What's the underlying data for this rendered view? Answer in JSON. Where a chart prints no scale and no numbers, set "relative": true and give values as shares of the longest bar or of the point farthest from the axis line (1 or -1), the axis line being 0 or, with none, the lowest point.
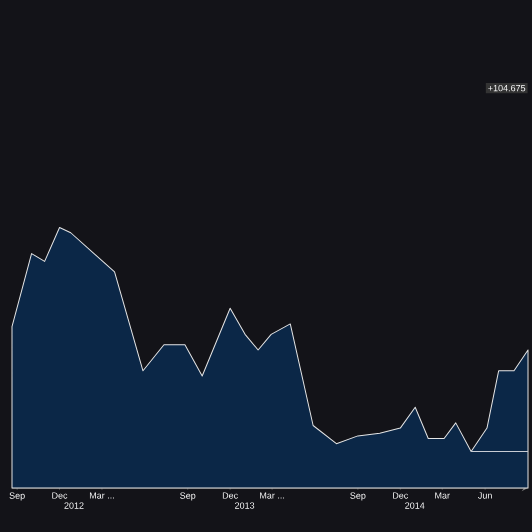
{
  "chart_data": {
    "type": "area",
    "relative": true,
    "annotations": [
      "+104.675"
    ],
    "xlim": [
      "2011-08-21",
      "2014-09-01"
    ],
    "xticks": [
      {
        "value": "2011-09-01",
        "label": "Sep"
      },
      {
        "value": "2011-12-01",
        "label": "Dec"
      },
      {
        "value": "2012-03-01",
        "label": "Mar ..."
      },
      {
        "value": "2012-09-01",
        "label": "Sep"
      },
      {
        "value": "2012-12-01",
        "label": "Dec"
      },
      {
        "value": "2013-03-01",
        "label": "Mar ..."
      },
      {
        "value": "2013-09-01",
        "label": "Sep"
      },
      {
        "value": "2013-12-01",
        "label": "Dec"
      },
      {
        "value": "2014-03-01",
        "label": "Mar"
      },
      {
        "value": "2014-06-01",
        "label": "Jun"
      }
    ],
    "x2lim": [
      "2011-08-21",
      "2014-09-01"
    ],
    "x2ticks": [
      {
        "value": "2012",
        "label": "2012"
      },
      {
        "value": "2013",
        "label": "2013"
      },
      {
        "value": "2014",
        "label": "2014"
      }
    ],
    "x": [
      "2011-08-21",
      "2011-10-02",
      "2011-10-30",
      "2011-12-01",
      "2011-12-25",
      "2012-02-13",
      "2012-03-28",
      "2012-05-28",
      "2012-07-12",
      "2012-08-26",
      "2012-10-02",
      "2012-12-01",
      "2013-01-02",
      "2013-01-30",
      "2013-02-27",
      "2013-04-09",
      "2013-05-28",
      "2013-07-17",
      "2013-09-01",
      "2013-10-18",
      "2013-12-01",
      "2014-01-02",
      "2014-01-30",
      "2014-03-05",
      "2014-03-30",
      "2014-05-02",
      "2014-06-05",
      "2014-06-30",
      "2014-08-02",
      "2014-09-01"
    ],
    "series": [
      {
        "color": "#0b2747",
        "values": [
          0.62,
          0.9,
          0.87,
          1.0,
          0.98,
          0.9,
          0.83,
          0.45,
          0.55,
          0.55,
          0.43,
          0.69,
          0.59,
          0.53,
          0.59,
          0.63,
          0.24,
          0.17,
          0.2,
          0.21,
          0.23,
          0.31,
          0.19,
          0.19,
          0.25,
          0.14,
          0.23,
          0.45,
          0.45,
          0.53
        ]
      },
      {
        "type": "line",
        "color": "#c8ccd4",
        "x": [
          "2014-05-02",
          "2014-09-01"
        ],
        "values": [
          0.14,
          0.14
        ]
      }
    ]
  }
}
